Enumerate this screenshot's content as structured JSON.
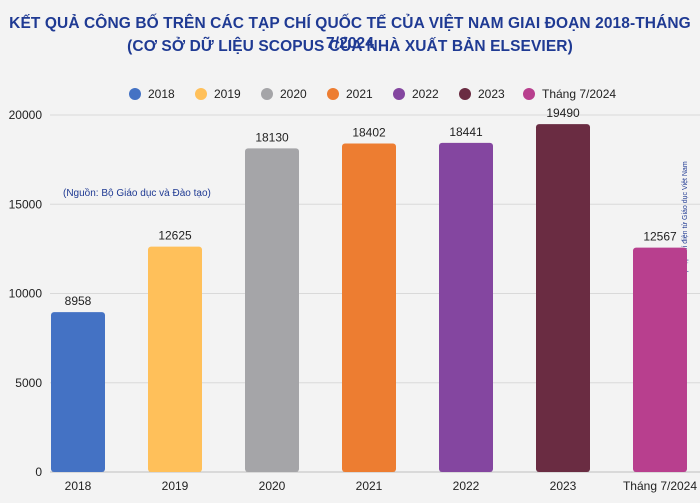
{
  "title_line1": "KẾT QUẢ CÔNG BỐ TRÊN CÁC TẠP CHÍ QUỐC TẾ CỦA VIỆT NAM GIAI ĐOẠN 2018-THÁNG 7/2024",
  "title_line2": "(CƠ SỞ DỮ LIỆU SCOPUS CỦA NHÀ XUẤT BẢN ELSEVIER)",
  "source_note": "(Nguồn: Bộ Giáo dục và Đào tạo)",
  "credit": "Doãn Nhàn | Tạp chí điện tử Giáo dục Việt Nam",
  "chart_data": {
    "type": "bar",
    "categories": [
      "2018",
      "2019",
      "2020",
      "2021",
      "2022",
      "2023",
      "Tháng 7/2024"
    ],
    "values": [
      8958,
      12625,
      18130,
      18402,
      18441,
      19490,
      12567
    ],
    "colors": [
      "#4472c4",
      "#ffc05a",
      "#a5a5a8",
      "#ed7d31",
      "#8446a0",
      "#6a2c42",
      "#b83f8e"
    ],
    "ylim": [
      0,
      20000
    ],
    "yticks": [
      "0",
      "5000",
      "10000",
      "15000",
      "20000"
    ],
    "grid": true,
    "legend_position": "top"
  }
}
